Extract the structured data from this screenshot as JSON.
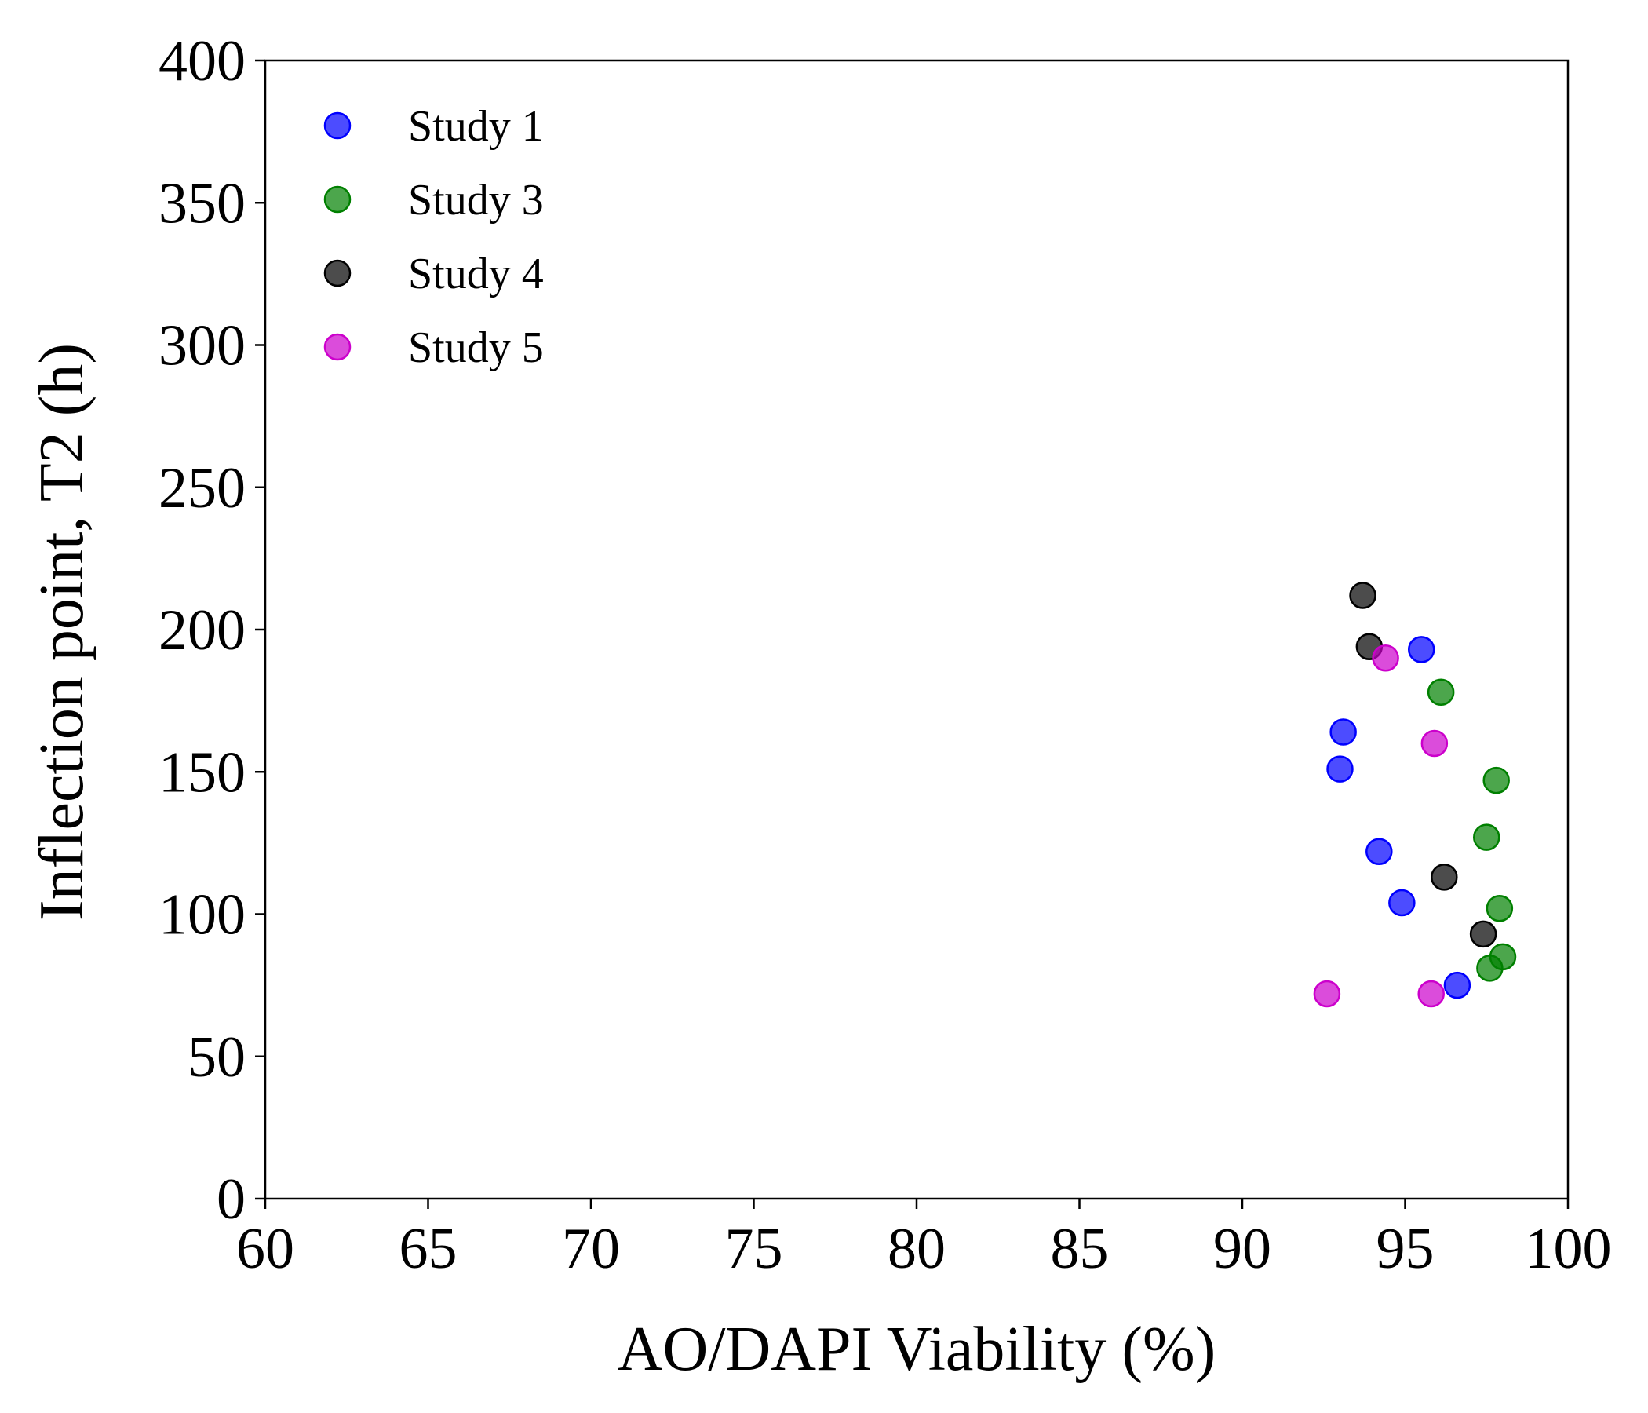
{
  "chart_data": {
    "type": "scatter",
    "title": "",
    "xlabel": "AO/DAPI Viability (%)",
    "ylabel": "Inflection point, T2 (h)",
    "xlim": [
      60,
      100
    ],
    "ylim": [
      0,
      400
    ],
    "xticks": [
      60,
      65,
      70,
      75,
      80,
      85,
      90,
      95,
      100
    ],
    "yticks": [
      0,
      50,
      100,
      150,
      200,
      250,
      300,
      350,
      400
    ],
    "grid": false,
    "legend_position": "top-left",
    "series": [
      {
        "name": "Study 1",
        "color": "#0000ff",
        "points": [
          [
            93.1,
            164
          ],
          [
            93.0,
            151
          ],
          [
            94.2,
            122
          ],
          [
            95.5,
            193
          ],
          [
            94.9,
            104
          ],
          [
            96.6,
            75
          ]
        ]
      },
      {
        "name": "Study 3",
        "color": "#008000",
        "points": [
          [
            96.1,
            178
          ],
          [
            97.8,
            147
          ],
          [
            97.5,
            127
          ],
          [
            97.9,
            102
          ],
          [
            98.0,
            85
          ],
          [
            97.6,
            81
          ]
        ]
      },
      {
        "name": "Study 4",
        "color": "#000000",
        "points": [
          [
            93.7,
            212
          ],
          [
            93.9,
            194
          ],
          [
            96.2,
            113
          ],
          [
            97.4,
            93
          ]
        ]
      },
      {
        "name": "Study 5",
        "color": "#cc00cc",
        "points": [
          [
            94.4,
            190
          ],
          [
            95.9,
            160
          ],
          [
            92.6,
            72
          ],
          [
            95.8,
            72
          ]
        ]
      }
    ]
  }
}
